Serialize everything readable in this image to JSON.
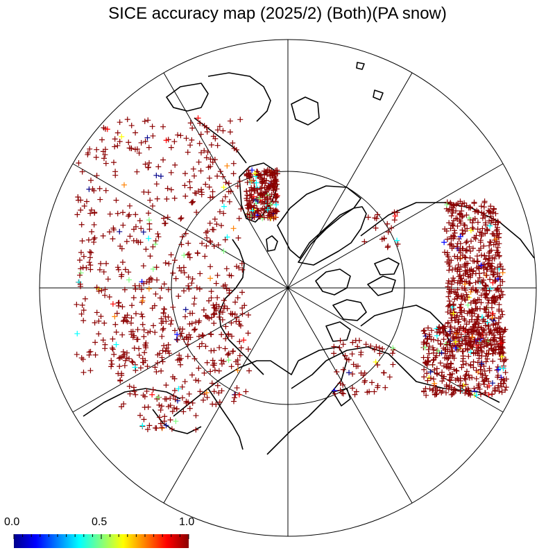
{
  "title": "SICE accuracy map (2025/2) (Both)(PA snow)",
  "colorbar": {
    "labels": [
      "0.0",
      "0.5",
      "1.0"
    ],
    "range": [
      0.0,
      1.0
    ],
    "colors": [
      "#00008b",
      "#0000ff",
      "#0080ff",
      "#00ffff",
      "#80ff80",
      "#ffff00",
      "#ff8000",
      "#ff0000",
      "#8b0000"
    ]
  },
  "map": {
    "projection": "north-polar-stereographic",
    "graticule": "meridians every 30 degrees; latitude circle",
    "marker": "plus",
    "dominant_value_color": "#8b0000"
  },
  "icons": {
    "marker": "plus-marker-icon"
  }
}
